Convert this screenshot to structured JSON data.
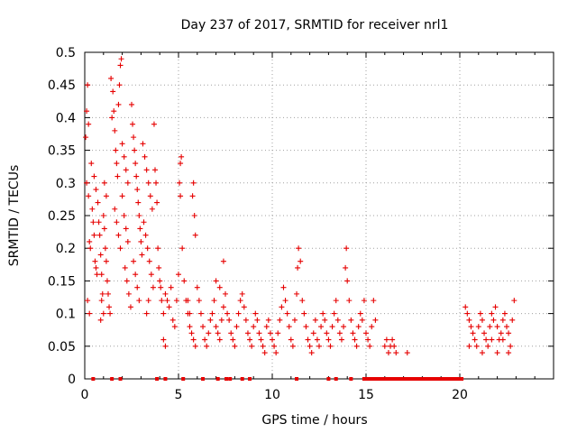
{
  "chart_data": {
    "type": "scatter",
    "title": "Day 237 of 2017, SRMTID for receiver nrl1",
    "xlabel": "GPS time / hours",
    "ylabel": "SRMTID / TECUs",
    "xlim": [
      0,
      25
    ],
    "ylim": [
      0,
      0.5
    ],
    "x_ticks": [
      0,
      5,
      10,
      15,
      20
    ],
    "y_ticks": [
      0,
      0.05,
      0.1,
      0.15,
      0.2,
      0.25,
      0.3,
      0.35,
      0.4,
      0.45,
      0.5
    ],
    "x_tick_labels": [
      "0",
      "5",
      "10",
      "15",
      "20"
    ],
    "y_tick_labels": [
      "0",
      "0.05",
      "0.1",
      "0.15",
      "0.2",
      "0.25",
      "0.3",
      "0.35",
      "0.4",
      "0.45",
      "0.5"
    ],
    "grid": true,
    "marker": "plus",
    "color": "#e60000",
    "series": [
      {
        "points": [
          [
            0.05,
            0.37
          ],
          [
            0.1,
            0.41
          ],
          [
            0.15,
            0.45
          ],
          [
            0.2,
            0.39
          ],
          [
            0.1,
            0.3
          ],
          [
            0.2,
            0.28
          ],
          [
            0.25,
            0.21
          ],
          [
            0.3,
            0.2
          ],
          [
            0.15,
            0.12
          ],
          [
            0.25,
            0.1
          ],
          [
            0.35,
            0.33
          ],
          [
            0.4,
            0.26
          ],
          [
            0.45,
            0.24
          ],
          [
            0.5,
            0.22
          ],
          [
            0.55,
            0.18
          ],
          [
            0.6,
            0.17
          ],
          [
            0.65,
            0.16
          ],
          [
            0.5,
            0.31
          ],
          [
            0.6,
            0.29
          ],
          [
            0.7,
            0.27
          ],
          [
            0.75,
            0.24
          ],
          [
            0.8,
            0.22
          ],
          [
            0.85,
            0.19
          ],
          [
            0.9,
            0.16
          ],
          [
            0.95,
            0.13
          ],
          [
            1.0,
            0.1
          ],
          [
            0.85,
            0.09
          ],
          [
            0.9,
            0.12
          ],
          [
            1.0,
            0.25
          ],
          [
            1.05,
            0.23
          ],
          [
            1.1,
            0.2
          ],
          [
            1.15,
            0.18
          ],
          [
            1.2,
            0.15
          ],
          [
            1.25,
            0.13
          ],
          [
            1.05,
            0.3
          ],
          [
            1.15,
            0.28
          ],
          [
            1.3,
            0.11
          ],
          [
            1.35,
            0.1
          ],
          [
            1.4,
            0.46
          ],
          [
            1.5,
            0.44
          ],
          [
            1.55,
            0.41
          ],
          [
            1.45,
            0.4
          ],
          [
            1.6,
            0.38
          ],
          [
            1.65,
            0.35
          ],
          [
            1.7,
            0.33
          ],
          [
            1.75,
            0.31
          ],
          [
            1.8,
            0.42
          ],
          [
            1.85,
            0.45
          ],
          [
            1.9,
            0.48
          ],
          [
            1.95,
            0.49
          ],
          [
            1.6,
            0.26
          ],
          [
            1.7,
            0.24
          ],
          [
            1.8,
            0.22
          ],
          [
            1.9,
            0.2
          ],
          [
            2.0,
            0.28
          ],
          [
            2.1,
            0.25
          ],
          [
            2.2,
            0.23
          ],
          [
            2.3,
            0.21
          ],
          [
            2.0,
            0.36
          ],
          [
            2.1,
            0.34
          ],
          [
            2.2,
            0.32
          ],
          [
            2.3,
            0.3
          ],
          [
            2.15,
            0.17
          ],
          [
            2.25,
            0.15
          ],
          [
            2.35,
            0.13
          ],
          [
            2.45,
            0.11
          ],
          [
            2.5,
            0.42
          ],
          [
            2.55,
            0.39
          ],
          [
            2.6,
            0.37
          ],
          [
            2.65,
            0.35
          ],
          [
            2.7,
            0.33
          ],
          [
            2.75,
            0.31
          ],
          [
            2.8,
            0.29
          ],
          [
            2.85,
            0.27
          ],
          [
            2.9,
            0.25
          ],
          [
            2.95,
            0.23
          ],
          [
            3.0,
            0.21
          ],
          [
            3.05,
            0.19
          ],
          [
            2.6,
            0.18
          ],
          [
            2.7,
            0.16
          ],
          [
            2.8,
            0.14
          ],
          [
            2.9,
            0.12
          ],
          [
            3.1,
            0.36
          ],
          [
            3.2,
            0.34
          ],
          [
            3.3,
            0.32
          ],
          [
            3.4,
            0.3
          ],
          [
            3.5,
            0.28
          ],
          [
            3.6,
            0.26
          ],
          [
            3.15,
            0.24
          ],
          [
            3.25,
            0.22
          ],
          [
            3.35,
            0.2
          ],
          [
            3.45,
            0.18
          ],
          [
            3.55,
            0.16
          ],
          [
            3.65,
            0.14
          ],
          [
            3.7,
            0.39
          ],
          [
            3.75,
            0.32
          ],
          [
            3.8,
            0.3
          ],
          [
            3.85,
            0.27
          ],
          [
            3.9,
            0.2
          ],
          [
            3.95,
            0.17
          ],
          [
            4.0,
            0.15
          ],
          [
            3.3,
            0.1
          ],
          [
            3.4,
            0.12
          ],
          [
            4.05,
            0.14
          ],
          [
            4.1,
            0.12
          ],
          [
            4.2,
            0.1
          ],
          [
            4.3,
            0.13
          ],
          [
            4.4,
            0.12
          ],
          [
            4.5,
            0.11
          ],
          [
            4.6,
            0.14
          ],
          [
            4.2,
            0.06
          ],
          [
            4.3,
            0.05
          ],
          [
            4.7,
            0.09
          ],
          [
            4.8,
            0.08
          ],
          [
            4.9,
            0.12
          ],
          [
            5.0,
            0.16
          ],
          [
            5.05,
            0.3
          ],
          [
            5.1,
            0.33
          ],
          [
            5.15,
            0.34
          ],
          [
            5.1,
            0.28
          ],
          [
            5.2,
            0.2
          ],
          [
            5.3,
            0.15
          ],
          [
            5.4,
            0.12
          ],
          [
            5.5,
            0.1
          ],
          [
            5.6,
            0.08
          ],
          [
            5.7,
            0.07
          ],
          [
            5.8,
            0.06
          ],
          [
            5.9,
            0.05
          ],
          [
            5.5,
            0.12
          ],
          [
            5.6,
            0.1
          ],
          [
            5.75,
            0.28
          ],
          [
            5.8,
            0.3
          ],
          [
            5.85,
            0.25
          ],
          [
            5.9,
            0.22
          ],
          [
            6.0,
            0.14
          ],
          [
            6.1,
            0.12
          ],
          [
            6.2,
            0.1
          ],
          [
            6.3,
            0.08
          ],
          [
            6.4,
            0.06
          ],
          [
            6.5,
            0.05
          ],
          [
            6.6,
            0.07
          ],
          [
            6.7,
            0.09
          ],
          [
            6.8,
            0.1
          ],
          [
            6.9,
            0.12
          ],
          [
            7.0,
            0.08
          ],
          [
            7.1,
            0.07
          ],
          [
            7.2,
            0.06
          ],
          [
            7.3,
            0.09
          ],
          [
            7.4,
            0.11
          ],
          [
            7.5,
            0.13
          ],
          [
            7.0,
            0.15
          ],
          [
            7.2,
            0.14
          ],
          [
            7.4,
            0.18
          ],
          [
            7.6,
            0.1
          ],
          [
            7.7,
            0.09
          ],
          [
            7.8,
            0.07
          ],
          [
            7.9,
            0.06
          ],
          [
            8.0,
            0.05
          ],
          [
            8.1,
            0.08
          ],
          [
            8.2,
            0.1
          ],
          [
            8.3,
            0.12
          ],
          [
            8.4,
            0.13
          ],
          [
            8.5,
            0.11
          ],
          [
            8.6,
            0.09
          ],
          [
            8.7,
            0.07
          ],
          [
            8.8,
            0.06
          ],
          [
            8.9,
            0.05
          ],
          [
            9.0,
            0.08
          ],
          [
            9.1,
            0.1
          ],
          [
            9.2,
            0.09
          ],
          [
            9.3,
            0.07
          ],
          [
            9.4,
            0.06
          ],
          [
            9.5,
            0.05
          ],
          [
            9.6,
            0.04
          ],
          [
            9.7,
            0.08
          ],
          [
            9.8,
            0.09
          ],
          [
            9.9,
            0.07
          ],
          [
            10.0,
            0.06
          ],
          [
            10.1,
            0.05
          ],
          [
            10.2,
            0.04
          ],
          [
            10.3,
            0.07
          ],
          [
            10.4,
            0.09
          ],
          [
            10.5,
            0.11
          ],
          [
            10.6,
            0.14
          ],
          [
            10.7,
            0.12
          ],
          [
            10.8,
            0.1
          ],
          [
            10.9,
            0.08
          ],
          [
            11.0,
            0.06
          ],
          [
            11.1,
            0.05
          ],
          [
            11.2,
            0.09
          ],
          [
            11.3,
            0.13
          ],
          [
            11.35,
            0.17
          ],
          [
            11.4,
            0.2
          ],
          [
            11.5,
            0.18
          ],
          [
            11.6,
            0.12
          ],
          [
            11.7,
            0.1
          ],
          [
            11.8,
            0.08
          ],
          [
            11.9,
            0.06
          ],
          [
            12.0,
            0.05
          ],
          [
            12.1,
            0.04
          ],
          [
            12.2,
            0.07
          ],
          [
            12.3,
            0.09
          ],
          [
            12.4,
            0.06
          ],
          [
            12.5,
            0.05
          ],
          [
            12.6,
            0.08
          ],
          [
            12.7,
            0.1
          ],
          [
            12.8,
            0.09
          ],
          [
            12.9,
            0.07
          ],
          [
            13.0,
            0.06
          ],
          [
            13.1,
            0.05
          ],
          [
            13.2,
            0.08
          ],
          [
            13.3,
            0.1
          ],
          [
            13.4,
            0.12
          ],
          [
            13.5,
            0.09
          ],
          [
            13.6,
            0.07
          ],
          [
            13.7,
            0.06
          ],
          [
            13.8,
            0.08
          ],
          [
            13.9,
            0.17
          ],
          [
            13.95,
            0.2
          ],
          [
            14.0,
            0.15
          ],
          [
            14.1,
            0.12
          ],
          [
            14.2,
            0.09
          ],
          [
            14.3,
            0.07
          ],
          [
            14.4,
            0.06
          ],
          [
            14.5,
            0.05
          ],
          [
            14.6,
            0.08
          ],
          [
            14.7,
            0.1
          ],
          [
            14.8,
            0.09
          ],
          [
            14.9,
            0.12
          ],
          [
            15.0,
            0.07
          ],
          [
            15.1,
            0.06
          ],
          [
            15.2,
            0.05
          ],
          [
            15.3,
            0.08
          ],
          [
            15.4,
            0.12
          ],
          [
            15.5,
            0.09
          ],
          [
            16.0,
            0.05
          ],
          [
            16.1,
            0.06
          ],
          [
            16.2,
            0.04
          ],
          [
            16.3,
            0.05
          ],
          [
            16.4,
            0.06
          ],
          [
            16.5,
            0.05
          ],
          [
            16.6,
            0.04
          ],
          [
            17.2,
            0.04
          ],
          [
            20.3,
            0.11
          ],
          [
            20.4,
            0.1
          ],
          [
            20.5,
            0.09
          ],
          [
            20.6,
            0.08
          ],
          [
            20.7,
            0.07
          ],
          [
            20.8,
            0.06
          ],
          [
            20.9,
            0.05
          ],
          [
            21.0,
            0.08
          ],
          [
            21.1,
            0.1
          ],
          [
            21.2,
            0.09
          ],
          [
            21.3,
            0.07
          ],
          [
            21.4,
            0.06
          ],
          [
            21.5,
            0.05
          ],
          [
            21.6,
            0.08
          ],
          [
            21.7,
            0.1
          ],
          [
            21.8,
            0.09
          ],
          [
            21.9,
            0.11
          ],
          [
            22.0,
            0.08
          ],
          [
            22.1,
            0.06
          ],
          [
            22.2,
            0.07
          ],
          [
            22.3,
            0.09
          ],
          [
            22.4,
            0.1
          ],
          [
            22.5,
            0.08
          ],
          [
            22.6,
            0.07
          ],
          [
            22.7,
            0.05
          ],
          [
            22.8,
            0.09
          ],
          [
            22.9,
            0.12
          ],
          [
            20.5,
            0.05
          ],
          [
            21.2,
            0.04
          ],
          [
            22.0,
            0.04
          ],
          [
            22.6,
            0.04
          ],
          [
            21.7,
            0.06
          ],
          [
            22.3,
            0.06
          ]
        ],
        "zero_points_x": [
          0.45,
          1.45,
          1.9,
          3.85,
          4.3,
          5.25,
          6.3,
          7.1,
          7.55,
          7.75,
          8.4,
          8.8,
          11.3,
          13.0,
          13.4,
          14.2,
          14.9,
          15.0,
          15.1,
          15.2,
          15.3,
          15.4,
          15.5,
          15.6,
          15.7,
          15.8,
          15.9,
          16.0,
          16.1,
          16.2,
          16.3,
          16.4,
          16.5,
          16.6,
          16.7,
          16.8,
          16.9,
          17.0,
          17.1,
          17.2,
          17.3,
          17.4,
          17.5,
          17.6,
          17.7,
          17.8,
          17.9,
          18.0,
          18.1,
          18.2,
          18.3,
          18.4,
          18.5,
          18.6,
          18.7,
          18.8,
          18.9,
          19.0,
          19.1,
          19.2,
          19.3,
          19.4,
          19.5,
          19.6,
          19.7,
          19.8,
          19.9,
          20.0,
          20.1
        ]
      }
    ]
  }
}
